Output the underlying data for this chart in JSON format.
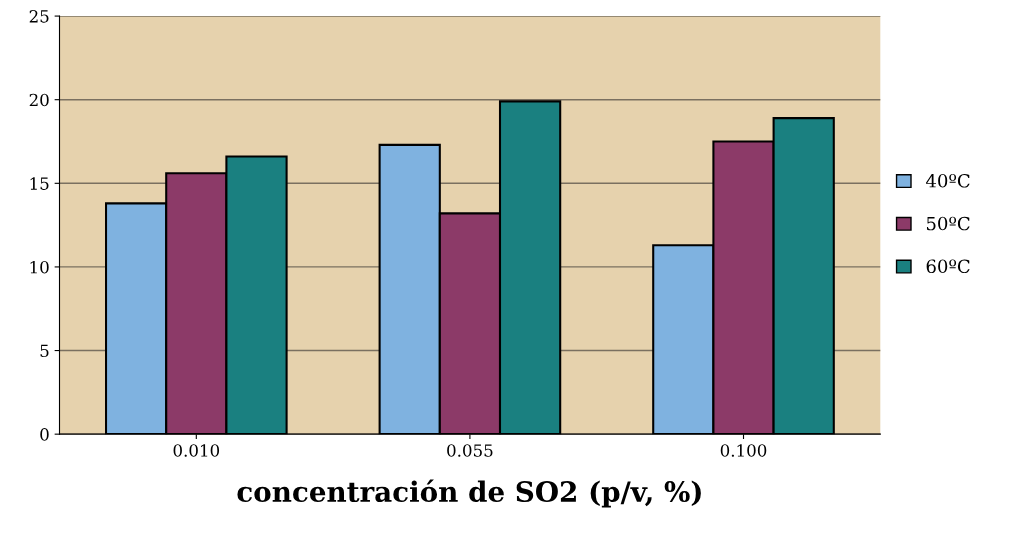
{
  "chart_data": {
    "type": "bar",
    "xlabel": "concentración de SO2 (p/v, %)",
    "categories": [
      "0.010",
      "0.055",
      "0.100"
    ],
    "series": [
      {
        "name": "40ºC",
        "color": "#7fb2e0",
        "values": [
          13.8,
          17.3,
          11.3
        ]
      },
      {
        "name": "50ºC",
        "color": "#8c3a68",
        "values": [
          15.6,
          13.2,
          17.5
        ]
      },
      {
        "name": "60ºC",
        "color": "#1a8080",
        "values": [
          16.6,
          19.9,
          18.9
        ]
      }
    ],
    "ylim": [
      0,
      25
    ],
    "yticks": [
      0,
      5,
      10,
      15,
      20,
      25
    ],
    "grid": "y",
    "legend": "right"
  }
}
